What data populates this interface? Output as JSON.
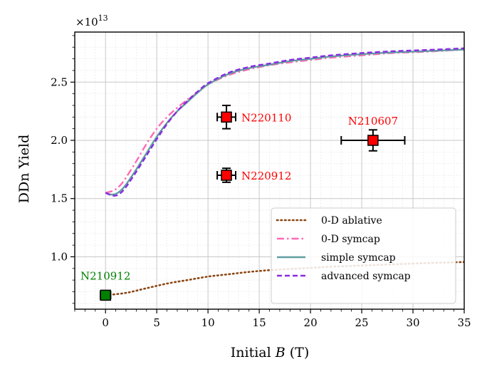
{
  "chart_data": {
    "type": "line",
    "xlabel_prefix": "Initial ",
    "xlabel_var": "B",
    "xlabel_suffix": " (T)",
    "ylabel": "DDn Yield",
    "y_multiplier": "×10",
    "y_multiplier_exp": "13",
    "xlim": [
      -3,
      35
    ],
    "ylim": [
      0.55,
      2.93
    ],
    "xticks": [
      0,
      5,
      10,
      15,
      20,
      25,
      30,
      35
    ],
    "xtick_labels": [
      "0",
      "5",
      "10",
      "15",
      "20",
      "25",
      "30",
      "35"
    ],
    "yticks": [
      1.0,
      1.5,
      2.0,
      2.5
    ],
    "ytick_labels": [
      "1.0",
      "1.5",
      "2.0",
      "2.5"
    ],
    "grid": true,
    "legend_position": "lower-right",
    "series": [
      {
        "name": "0-D ablative",
        "color": "#8B4513",
        "style": "dotted",
        "x": [
          0,
          2,
          4,
          6,
          8,
          10,
          12,
          14,
          16,
          18,
          20,
          22,
          25,
          28,
          31,
          35
        ],
        "y": [
          0.67,
          0.69,
          0.73,
          0.77,
          0.8,
          0.83,
          0.85,
          0.87,
          0.885,
          0.895,
          0.905,
          0.915,
          0.925,
          0.935,
          0.945,
          0.955
        ]
      },
      {
        "name": "0-D symcap",
        "color": "#FF69B4",
        "style": "dashdot",
        "x": [
          0,
          0.5,
          1,
          1.5,
          2,
          3,
          4,
          5,
          6,
          7,
          8,
          9,
          10,
          12,
          14,
          16,
          18,
          20,
          22,
          25,
          28,
          31,
          35
        ],
        "y": [
          1.55,
          1.56,
          1.58,
          1.62,
          1.68,
          1.82,
          1.97,
          2.1,
          2.2,
          2.28,
          2.35,
          2.41,
          2.48,
          2.56,
          2.61,
          2.645,
          2.67,
          2.69,
          2.71,
          2.73,
          2.75,
          2.76,
          2.78
        ]
      },
      {
        "name": "simple symcap",
        "color": "#5F9EA0",
        "style": "solid",
        "x": [
          0,
          0.5,
          1,
          1.5,
          2,
          3,
          4,
          5,
          6,
          7,
          8,
          9,
          10,
          12,
          14,
          16,
          18,
          20,
          22,
          25,
          28,
          31,
          35
        ],
        "y": [
          1.55,
          1.535,
          1.54,
          1.57,
          1.62,
          1.75,
          1.89,
          2.03,
          2.15,
          2.25,
          2.33,
          2.41,
          2.48,
          2.57,
          2.62,
          2.65,
          2.68,
          2.7,
          2.72,
          2.74,
          2.755,
          2.765,
          2.78
        ]
      },
      {
        "name": "advanced symcap",
        "color": "#8A2BE2",
        "style": "dashed",
        "x": [
          0,
          0.5,
          1,
          1.5,
          2,
          3,
          4,
          5,
          6,
          7,
          8,
          9,
          10,
          12,
          14,
          16,
          18,
          20,
          22,
          25,
          28,
          31,
          35
        ],
        "y": [
          1.55,
          1.53,
          1.525,
          1.55,
          1.6,
          1.73,
          1.87,
          2.01,
          2.14,
          2.25,
          2.34,
          2.42,
          2.49,
          2.58,
          2.63,
          2.66,
          2.69,
          2.71,
          2.73,
          2.75,
          2.765,
          2.775,
          2.79
        ]
      }
    ],
    "points": [
      {
        "label": "N220110",
        "x": 11.8,
        "y": 2.2,
        "xerr": 0.9,
        "yerr": 0.1,
        "color": "#FF0000",
        "label_pos": "right"
      },
      {
        "label": "N220912",
        "x": 11.8,
        "y": 1.7,
        "xerr": 0.9,
        "yerr": 0.06,
        "color": "#FF0000",
        "label_pos": "right"
      },
      {
        "label": "N210607",
        "x": 26.1,
        "y": 2.0,
        "xerr": 3.1,
        "yerr": 0.09,
        "color": "#FF0000",
        "label_pos": "above"
      },
      {
        "label": "N210912",
        "x": 0.0,
        "y": 0.67,
        "xerr": 0.5,
        "yerr": 0.035,
        "color": "#008000",
        "label_pos": "above"
      }
    ]
  }
}
